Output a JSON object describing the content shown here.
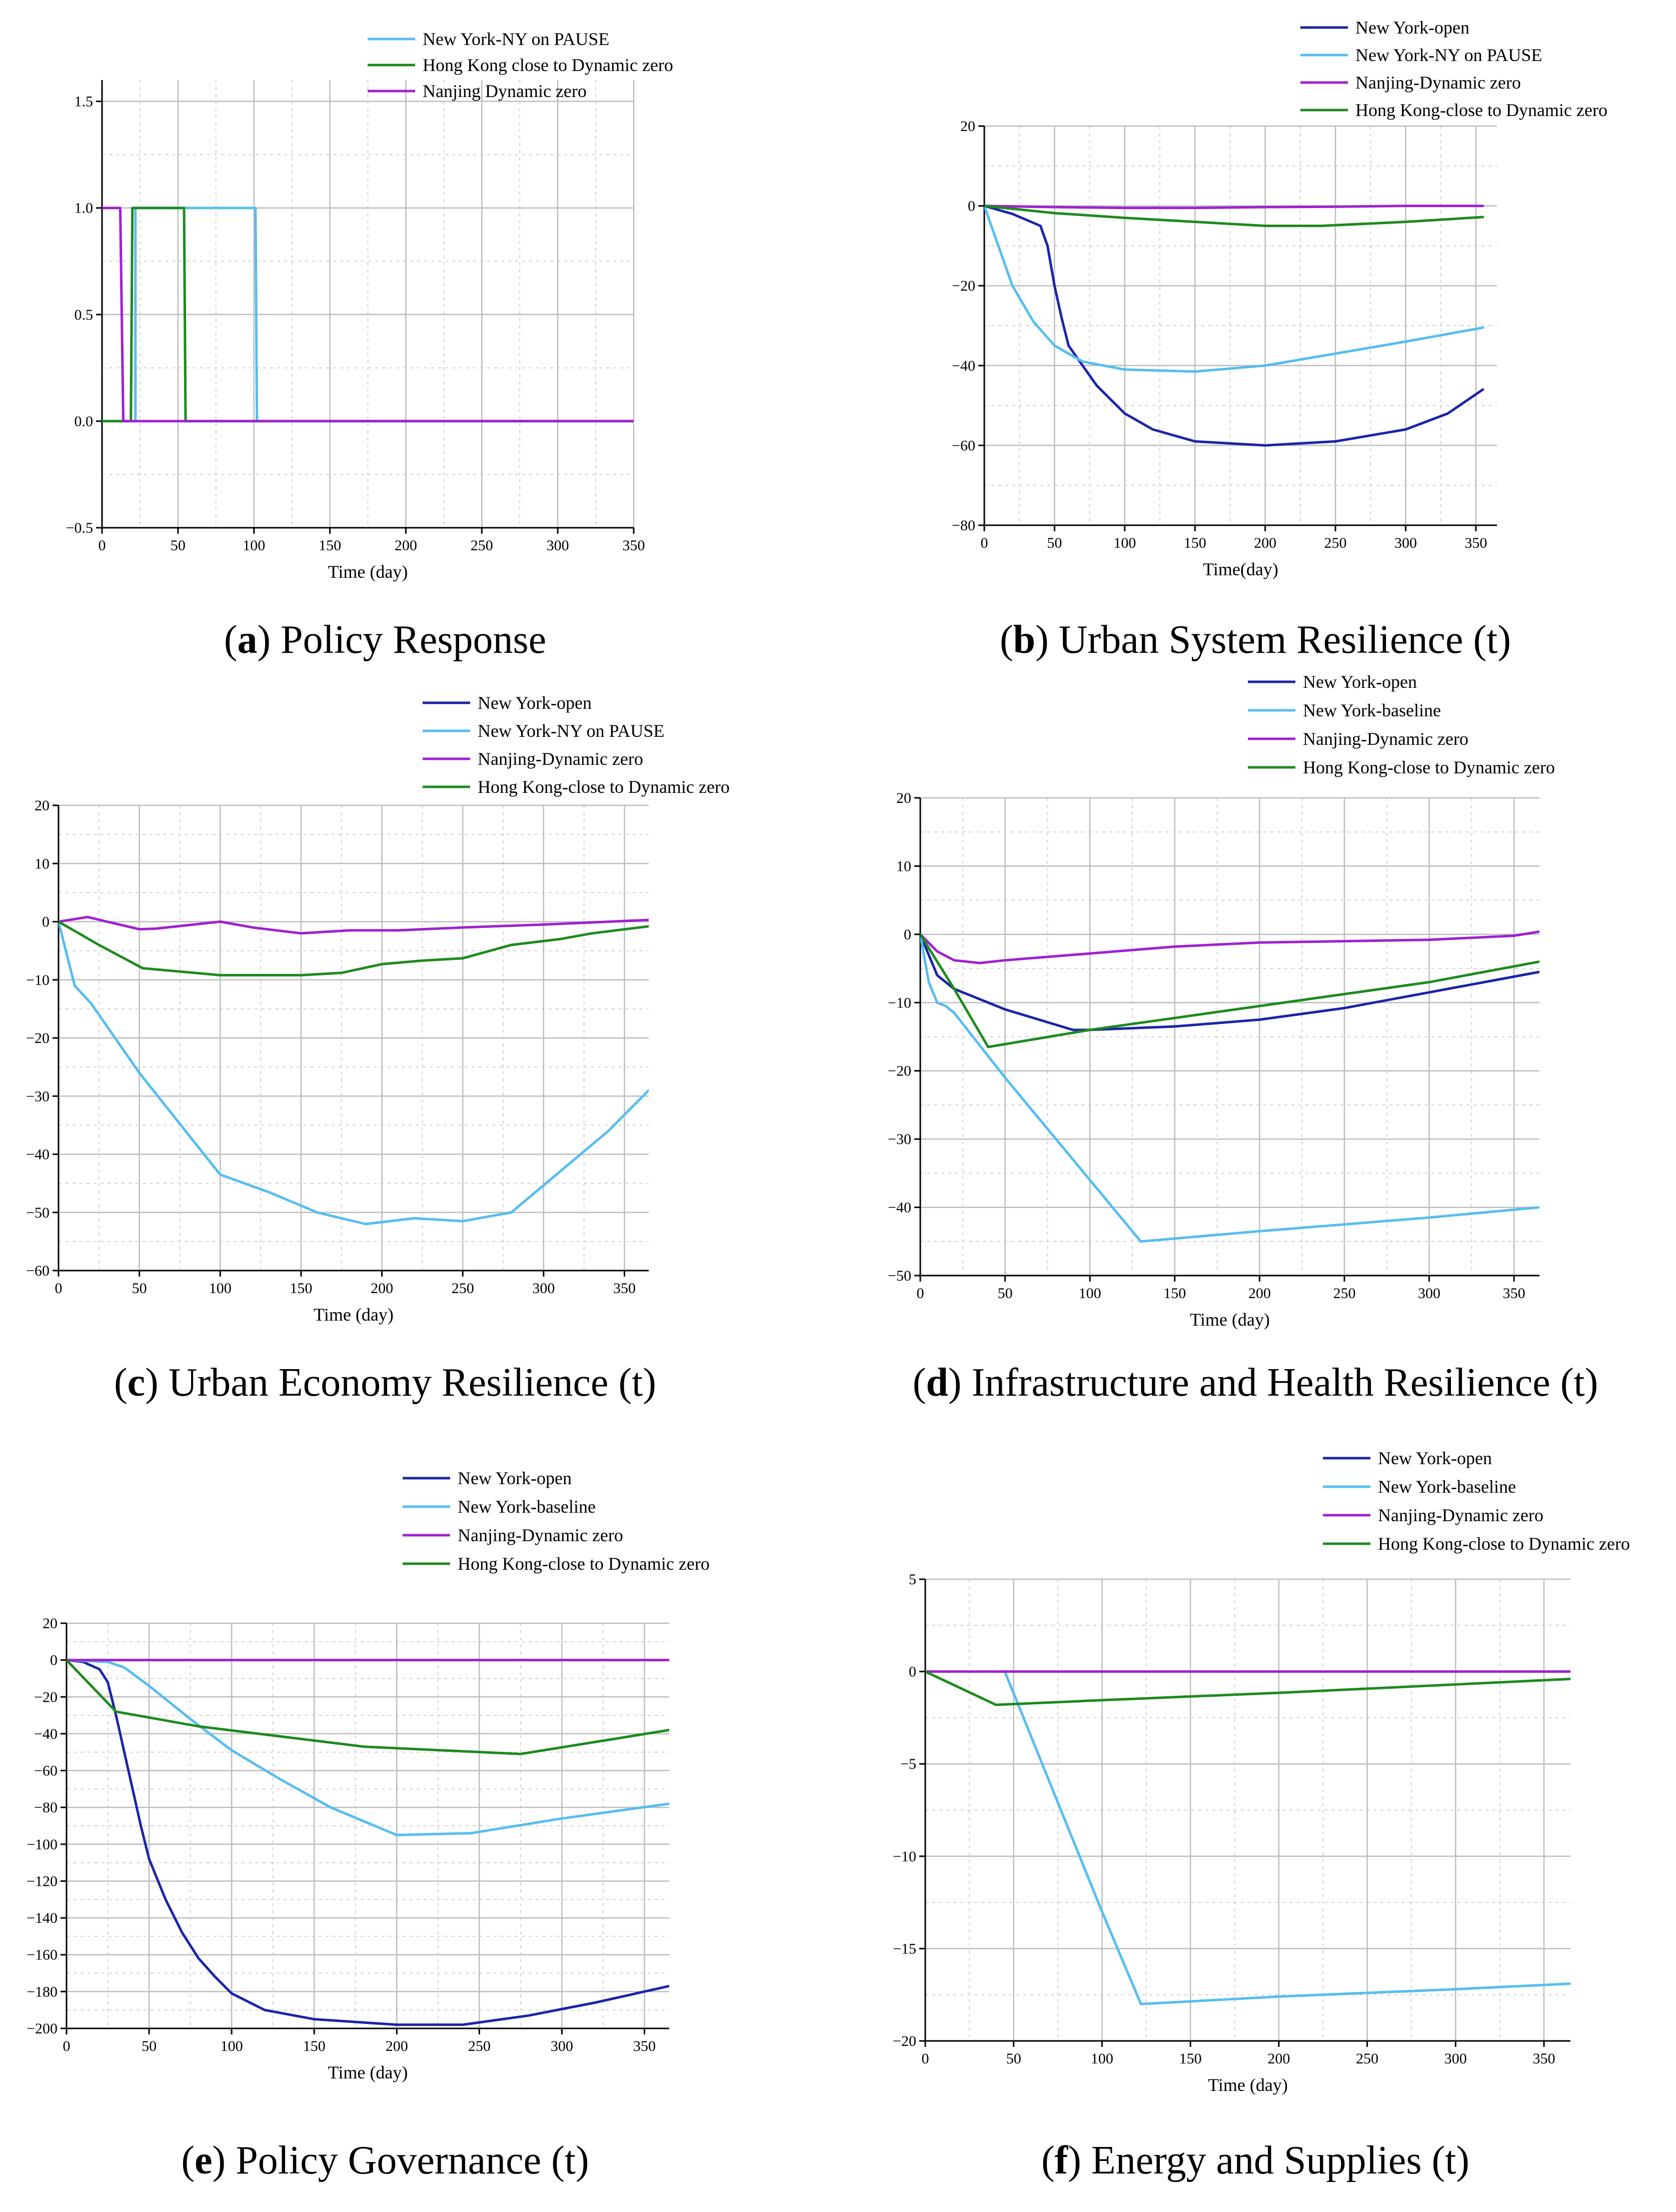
{
  "colors": {
    "ny_open": "#1a24a8",
    "ny_light": "#56bdf0",
    "nanjing": "#a020d0",
    "hongkong": "#1d8a1d"
  },
  "chart_data": [
    {
      "id": "a",
      "type": "line",
      "caption": {
        "letter": "a",
        "text": "Policy Response"
      },
      "xlabel": "Time (day)",
      "xlim": [
        0,
        350
      ],
      "ylim": [
        -0.5,
        1.6
      ],
      "xticks": [
        0,
        50,
        100,
        150,
        200,
        250,
        300,
        350
      ],
      "xtick_labels": [
        "0",
        "50",
        "100",
        "150",
        "200",
        "250",
        "300",
        "350"
      ],
      "yticks": [
        -0.5,
        0.0,
        0.5,
        1.0,
        1.5
      ],
      "ytick_labels": [
        "−0.5",
        "0.0",
        "0.5",
        "1.0",
        "1.5"
      ],
      "legend": [
        "New York-NY on PAUSE",
        "Hong Kong close to Dynamic zero",
        "Nanjing Dynamic zero"
      ],
      "series": [
        {
          "name": "New York-NY on PAUSE",
          "color": "ny_light",
          "x": [
            0,
            22,
            22,
            101,
            102,
            350
          ],
          "y": [
            0,
            0,
            1,
            1,
            0,
            0
          ]
        },
        {
          "name": "Hong Kong close to Dynamic zero",
          "color": "hongkong",
          "x": [
            0,
            19,
            20,
            54,
            55,
            350
          ],
          "y": [
            0,
            0,
            1,
            1,
            0,
            0
          ]
        },
        {
          "name": "Nanjing Dynamic zero",
          "color": "nanjing",
          "x": [
            0,
            12,
            14,
            350
          ],
          "y": [
            1,
            1,
            0,
            0
          ]
        }
      ]
    },
    {
      "id": "b",
      "type": "line",
      "caption": {
        "letter": "b",
        "text": "Urban System Resilience (t)"
      },
      "xlabel": "Time(day)",
      "xlim": [
        0,
        365
      ],
      "ylim": [
        -80,
        20
      ],
      "xticks": [
        0,
        50,
        100,
        150,
        200,
        250,
        300,
        350
      ],
      "xtick_labels": [
        "0",
        "50",
        "100",
        "150",
        "200",
        "250",
        "300",
        "350"
      ],
      "yticks": [
        -80,
        -60,
        -40,
        -20,
        0,
        20
      ],
      "ytick_labels": [
        "−80",
        "−60",
        "−40",
        "−20",
        "0",
        "20"
      ],
      "legend": [
        "New York-open",
        "New York-NY on PAUSE",
        "Nanjing-Dynamic zero",
        "Hong Kong-close to Dynamic zero"
      ],
      "series": [
        {
          "name": "New York-open",
          "color": "ny_open",
          "x": [
            0,
            20,
            40,
            45,
            50,
            55,
            60,
            80,
            100,
            120,
            150,
            200,
            250,
            300,
            330,
            355
          ],
          "y": [
            0,
            -2,
            -5,
            -10,
            -20,
            -28,
            -35,
            -45,
            -52,
            -56,
            -59,
            -60,
            -59,
            -56,
            -52,
            -46
          ]
        },
        {
          "name": "New York-NY on PAUSE",
          "color": "ny_light",
          "x": [
            0,
            10,
            20,
            35,
            50,
            70,
            100,
            150,
            200,
            250,
            300,
            355
          ],
          "y": [
            0,
            -10,
            -20,
            -29,
            -35,
            -39,
            -41,
            -41.5,
            -40,
            -37,
            -34,
            -30.5
          ]
        },
        {
          "name": "Nanjing-Dynamic zero",
          "color": "nanjing",
          "x": [
            0,
            50,
            100,
            150,
            200,
            250,
            300,
            355
          ],
          "y": [
            0,
            -0.3,
            -0.5,
            -0.5,
            -0.3,
            -0.2,
            0,
            0
          ]
        },
        {
          "name": "Hong Kong-close to Dynamic zero",
          "color": "hongkong",
          "x": [
            0,
            50,
            100,
            150,
            200,
            240,
            300,
            355
          ],
          "y": [
            0,
            -1.8,
            -3,
            -4,
            -5,
            -5,
            -4,
            -2.8
          ]
        }
      ]
    },
    {
      "id": "c",
      "type": "line",
      "caption": {
        "letter": "c",
        "text": "Urban Economy Resilience (t)"
      },
      "xlabel": "Time (day)",
      "xlim": [
        0,
        365
      ],
      "ylim": [
        -60,
        20
      ],
      "xticks": [
        0,
        50,
        100,
        150,
        200,
        250,
        300,
        350
      ],
      "xtick_labels": [
        "0",
        "50",
        "100",
        "150",
        "200",
        "250",
        "300",
        "350"
      ],
      "yticks": [
        -60,
        -50,
        -40,
        -30,
        -20,
        -10,
        0,
        10,
        20
      ],
      "ytick_labels": [
        "−60",
        "−50",
        "−40",
        "−30",
        "−20",
        "−10",
        "0",
        "10",
        "20"
      ],
      "legend": [
        "New York-open",
        "New York-NY on PAUSE",
        "Nanjing-Dynamic zero",
        "Hong Kong-close to Dynamic zero"
      ],
      "series": [
        {
          "name": "New York-NY on PAUSE",
          "color": "ny_light",
          "x": [
            0,
            10,
            20,
            50,
            100,
            130,
            160,
            190,
            220,
            250,
            280,
            310,
            340,
            365
          ],
          "y": [
            0,
            -11,
            -14,
            -26,
            -43.5,
            -46.5,
            -50,
            -52,
            -51,
            -51.5,
            -50,
            -43,
            -36,
            -29
          ]
        },
        {
          "name": "Nanjing-Dynamic zero",
          "color": "nanjing",
          "x": [
            0,
            18,
            30,
            50,
            60,
            100,
            120,
            150,
            180,
            210,
            250,
            300,
            365
          ],
          "y": [
            0,
            0.8,
            0,
            -1.3,
            -1.2,
            0,
            -1,
            -2,
            -1.5,
            -1.5,
            -1,
            -0.5,
            0.3
          ]
        },
        {
          "name": "Hong Kong-close to Dynamic zero",
          "color": "hongkong",
          "x": [
            0,
            25,
            52,
            100,
            150,
            175,
            200,
            225,
            250,
            280,
            310,
            330,
            365
          ],
          "y": [
            0,
            -4,
            -8,
            -9.2,
            -9.2,
            -8.8,
            -7.3,
            -6.7,
            -6.3,
            -4,
            -3,
            -2,
            -0.8
          ]
        }
      ]
    },
    {
      "id": "d",
      "type": "line",
      "caption": {
        "letter": "d",
        "text": "Infrastructure and Health Resilience (t)"
      },
      "xlabel": "Time (day)",
      "xlim": [
        0,
        365
      ],
      "ylim": [
        -50,
        20
      ],
      "xticks": [
        0,
        50,
        100,
        150,
        200,
        250,
        300,
        350
      ],
      "xtick_labels": [
        "0",
        "50",
        "100",
        "150",
        "200",
        "250",
        "300",
        "350"
      ],
      "yticks": [
        -50,
        -40,
        -30,
        -20,
        -10,
        0,
        10,
        20
      ],
      "ytick_labels": [
        "−50",
        "−40",
        "−30",
        "−20",
        "−10",
        "0",
        "10",
        "20"
      ],
      "legend": [
        "New York-open",
        "New York-baseline",
        "Nanjing-Dynamic zero",
        "Hong Kong-close to Dynamic zero"
      ],
      "series": [
        {
          "name": "New York-open",
          "color": "ny_open",
          "x": [
            0,
            10,
            20,
            30,
            50,
            90,
            100,
            150,
            200,
            250,
            300,
            365
          ],
          "y": [
            0,
            -6,
            -8,
            -9,
            -11,
            -14,
            -14,
            -13.5,
            -12.5,
            -10.8,
            -8.5,
            -5.5
          ]
        },
        {
          "name": "New York-baseline",
          "color": "ny_light",
          "x": [
            0,
            5,
            10,
            15,
            20,
            50,
            100,
            130,
            200,
            300,
            365
          ],
          "y": [
            0,
            -7,
            -10,
            -10.5,
            -11.5,
            -21,
            -36,
            -45,
            -43.5,
            -41.5,
            -40
          ]
        },
        {
          "name": "Nanjing-Dynamic zero",
          "color": "nanjing",
          "x": [
            0,
            10,
            20,
            35,
            50,
            100,
            150,
            200,
            250,
            300,
            350,
            365
          ],
          "y": [
            0,
            -2.5,
            -3.8,
            -4.2,
            -3.8,
            -2.8,
            -1.8,
            -1.2,
            -1,
            -0.8,
            -0.2,
            0.4
          ]
        },
        {
          "name": "Hong Kong-close to Dynamic zero",
          "color": "hongkong",
          "x": [
            0,
            20,
            40,
            100,
            200,
            300,
            365
          ],
          "y": [
            0,
            -8,
            -16.5,
            -14,
            -10.5,
            -7,
            -4
          ]
        }
      ]
    },
    {
      "id": "e",
      "type": "line",
      "caption": {
        "letter": "e",
        "text": "Policy Governance (t)"
      },
      "xlabel": "Time (day)",
      "xlim": [
        0,
        365
      ],
      "ylim": [
        -200,
        20
      ],
      "xticks": [
        0,
        50,
        100,
        150,
        200,
        250,
        300,
        350
      ],
      "xtick_labels": [
        "0",
        "50",
        "100",
        "150",
        "200",
        "250",
        "300",
        "350"
      ],
      "yticks": [
        -200,
        -180,
        -160,
        -140,
        -120,
        -100,
        -80,
        -60,
        -40,
        -20,
        0,
        20
      ],
      "ytick_labels": [
        "−200",
        "−180",
        "−160",
        "−140",
        "−120",
        "−100",
        "−80",
        "−60",
        "−40",
        "−20",
        "0",
        "20"
      ],
      "legend": [
        "New York-open",
        "New York-baseline",
        "Nanjing-Dynamic zero",
        "Hong Kong-close to Dynamic zero"
      ],
      "series": [
        {
          "name": "New York-open",
          "color": "ny_open",
          "x": [
            0,
            10,
            20,
            25,
            30,
            35,
            40,
            45,
            50,
            60,
            70,
            80,
            90,
            100,
            120,
            150,
            200,
            240,
            280,
            320,
            365
          ],
          "y": [
            0,
            -1,
            -5,
            -12,
            -30,
            -50,
            -70,
            -90,
            -108,
            -130,
            -148,
            -162,
            -172,
            -181,
            -190,
            -195,
            -198,
            -198,
            -193,
            -186,
            -177
          ]
        },
        {
          "name": "New York-baseline",
          "color": "ny_light",
          "x": [
            0,
            25,
            35,
            50,
            75,
            100,
            130,
            160,
            200,
            245,
            300,
            365
          ],
          "y": [
            0,
            -1,
            -4,
            -14,
            -32,
            -49,
            -65,
            -80,
            -95,
            -94,
            -86,
            -78
          ]
        },
        {
          "name": "Nanjing-Dynamic zero",
          "color": "nanjing",
          "x": [
            0,
            365
          ],
          "y": [
            0,
            0
          ]
        },
        {
          "name": "Hong Kong-close to Dynamic zero",
          "color": "hongkong",
          "x": [
            0,
            30,
            80,
            180,
            275,
            365
          ],
          "y": [
            0,
            -28,
            -36,
            -47,
            -51,
            -38
          ]
        }
      ]
    },
    {
      "id": "f",
      "type": "line",
      "caption": {
        "letter": "f",
        "text": "Energy and Supplies (t)"
      },
      "xlabel": "Time (day)",
      "xlim": [
        0,
        365
      ],
      "ylim": [
        -20,
        5
      ],
      "xticks": [
        0,
        50,
        100,
        150,
        200,
        250,
        300,
        350
      ],
      "xtick_labels": [
        "0",
        "50",
        "100",
        "150",
        "200",
        "250",
        "300",
        "350"
      ],
      "yticks": [
        -20,
        -15,
        -10,
        -5,
        0,
        5
      ],
      "ytick_labels": [
        "−20",
        "−15",
        "−10",
        "−5",
        "0",
        "5"
      ],
      "legend": [
        "New York-open",
        "New York-baseline",
        "Nanjing-Dynamic zero",
        "Hong Kong-close to Dynamic zero"
      ],
      "series": [
        {
          "name": "New York-baseline",
          "color": "ny_light",
          "x": [
            45,
            100,
            122,
            200,
            300,
            365
          ],
          "y": [
            0,
            -13,
            -18,
            -17.6,
            -17.2,
            -16.9
          ]
        },
        {
          "name": "Nanjing-Dynamic zero",
          "color": "nanjing",
          "x": [
            0,
            365
          ],
          "y": [
            0,
            0
          ]
        },
        {
          "name": "Hong Kong-close to Dynamic zero",
          "color": "hongkong",
          "x": [
            0,
            40,
            100,
            200,
            300,
            365
          ],
          "y": [
            0,
            -1.8,
            -1.55,
            -1.15,
            -0.7,
            -0.4
          ]
        }
      ]
    }
  ]
}
